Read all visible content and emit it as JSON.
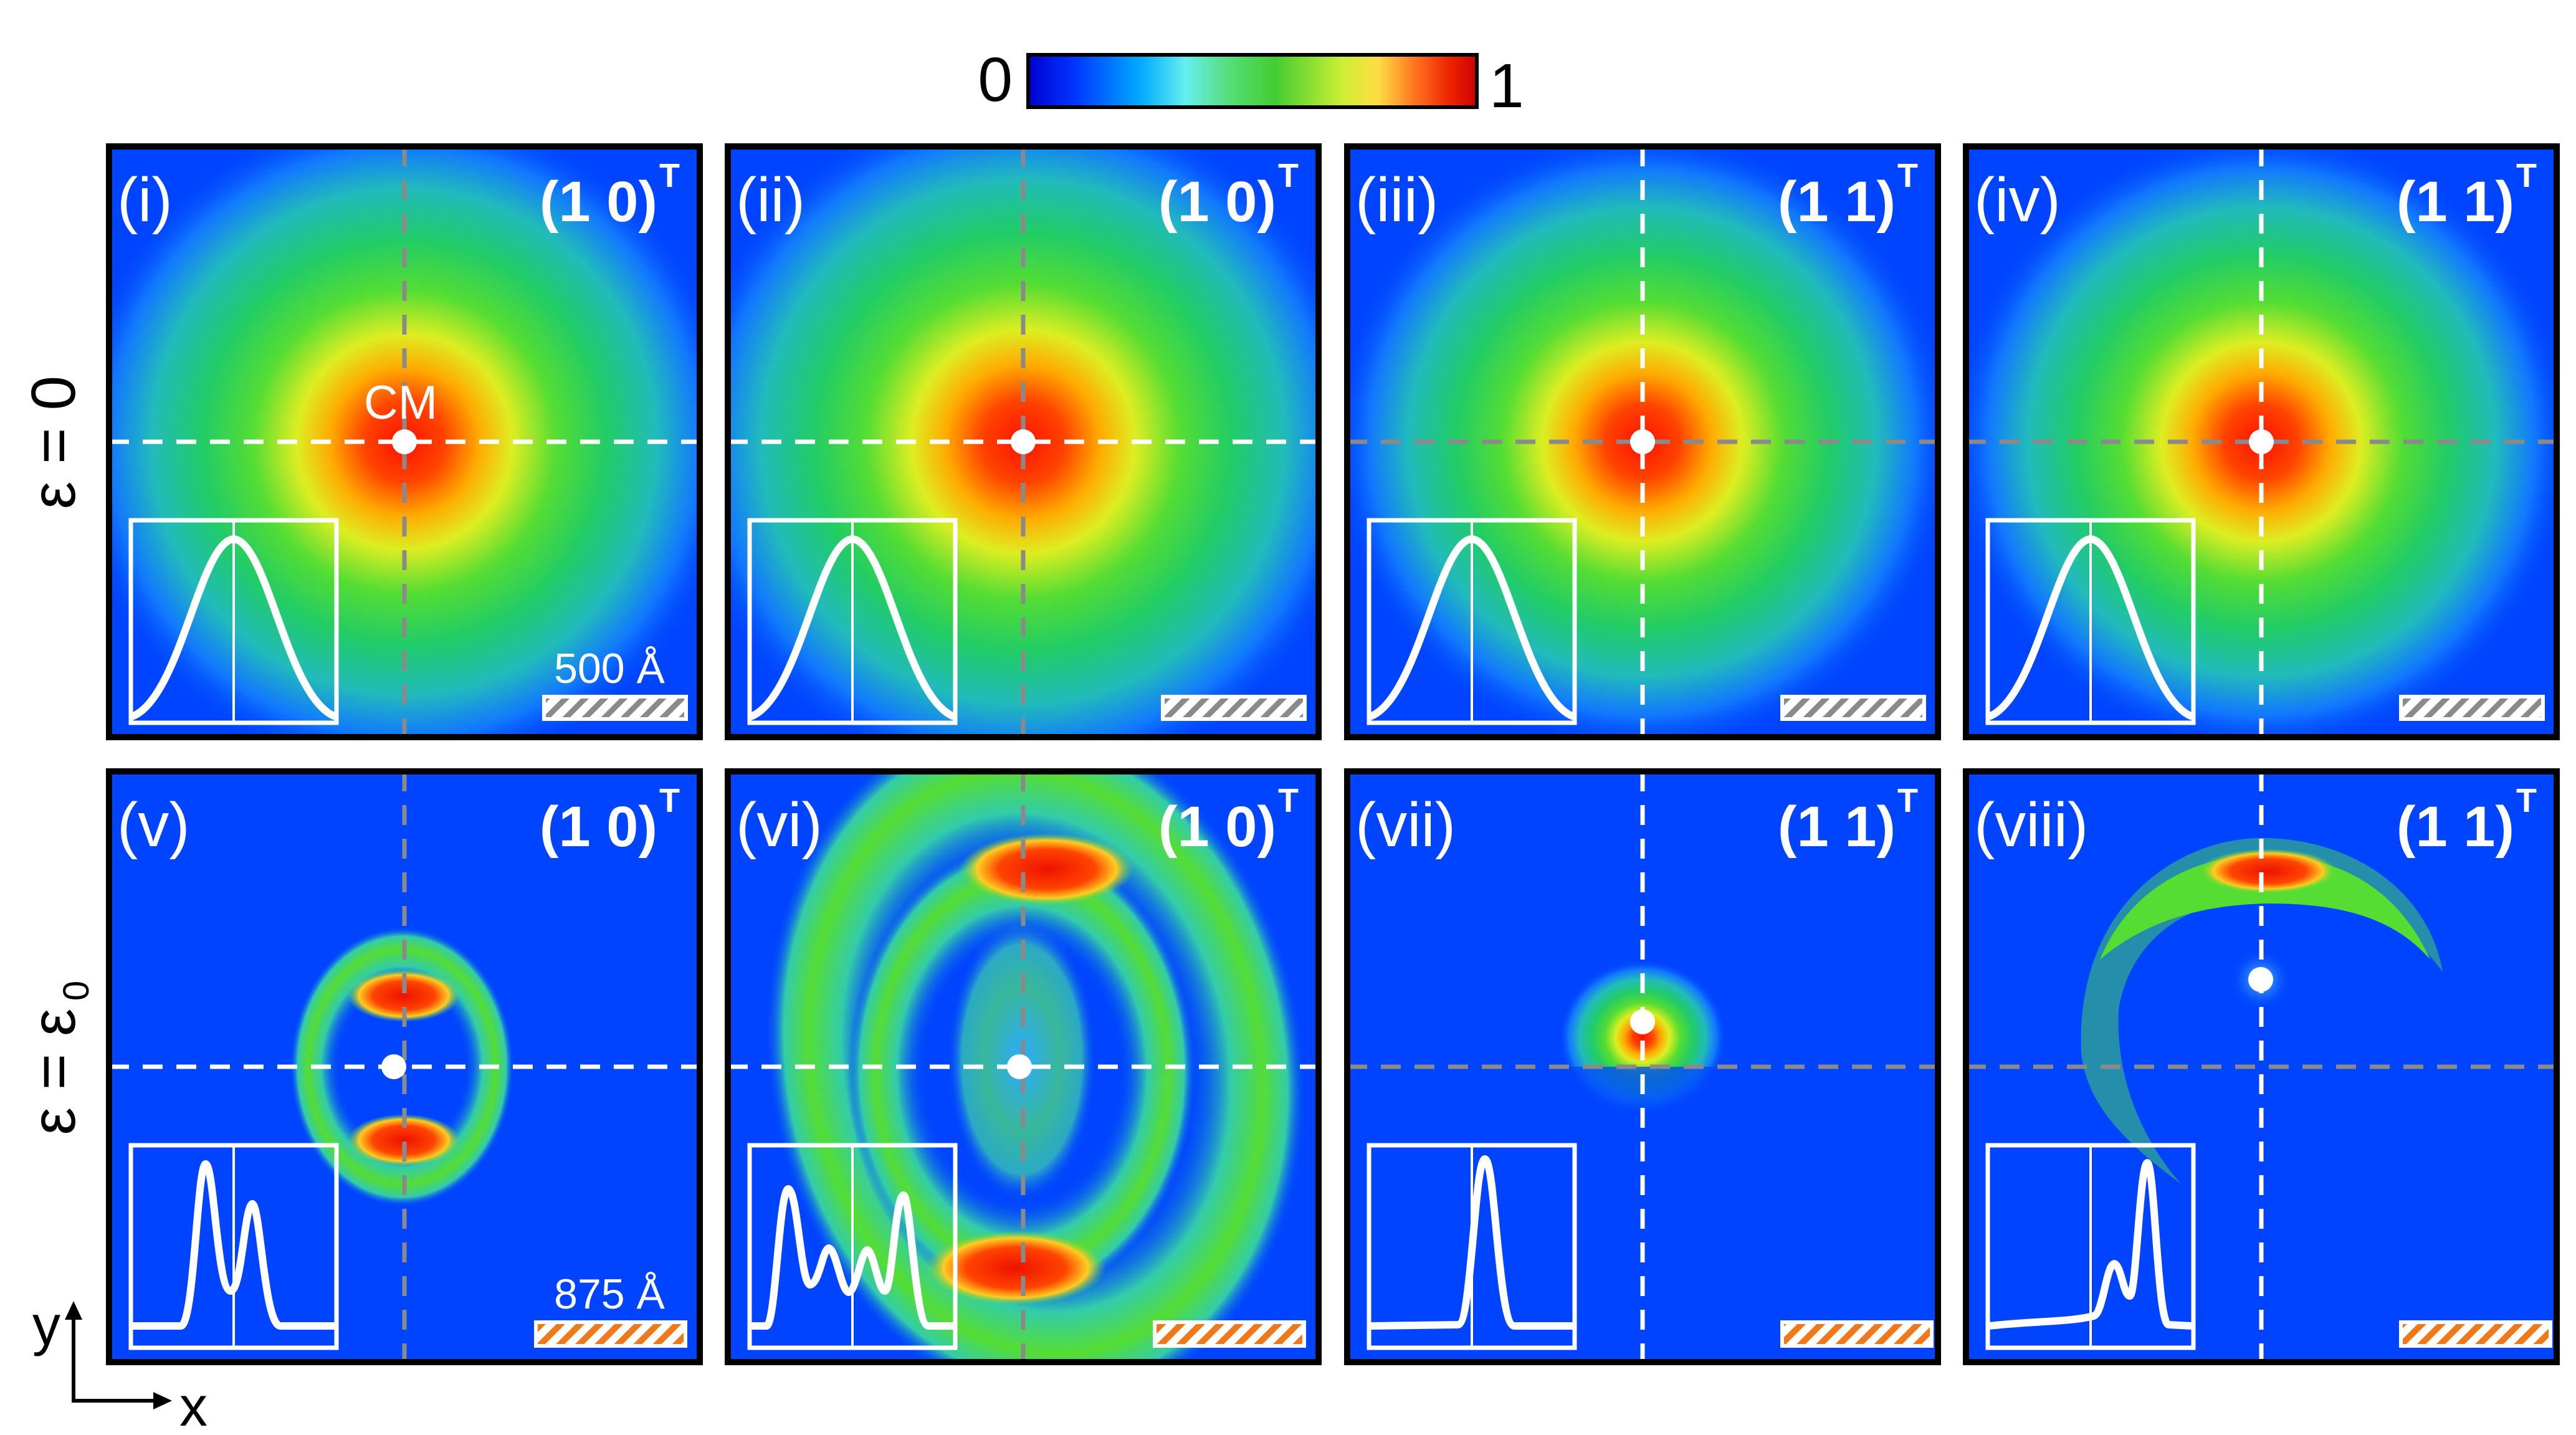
{
  "colorbar": {
    "min_label": "0",
    "max_label": "1",
    "stops": [
      "#0000cc",
      "#0033ff",
      "#00aaff",
      "#66eeee",
      "#55dd77",
      "#44cc33",
      "#ccee33",
      "#ffdd44",
      "#ff7722",
      "#ee2200",
      "#cc0000"
    ]
  },
  "row_labels": {
    "top": "ε = 0",
    "bottom_main": "ε = ε",
    "bottom_sub": "0"
  },
  "axes_indicator": {
    "x": "x",
    "y": "y"
  },
  "center_label": "CM",
  "scale_bars": {
    "top": "500 Å",
    "bottom": "875 Å"
  },
  "panels": [
    {
      "id": "i",
      "label": "(i)",
      "mode": "(1 0)",
      "sup": "T"
    },
    {
      "id": "ii",
      "label": "(ii)",
      "mode": "(1 0)",
      "sup": "T"
    },
    {
      "id": "iii",
      "label": "(iii)",
      "mode": "(1 1)",
      "sup": "T"
    },
    {
      "id": "iv",
      "label": "(iv)",
      "mode": "(1 1)",
      "sup": "T"
    },
    {
      "id": "v",
      "label": "(v)",
      "mode": "(1 0)",
      "sup": "T"
    },
    {
      "id": "vi",
      "label": "(vi)",
      "mode": "(1 0)",
      "sup": "T"
    },
    {
      "id": "vii",
      "label": "(vii)",
      "mode": "(1 1)",
      "sup": "T"
    },
    {
      "id": "viii",
      "label": "(viii)",
      "mode": "(1 1)",
      "sup": "T"
    }
  ]
}
